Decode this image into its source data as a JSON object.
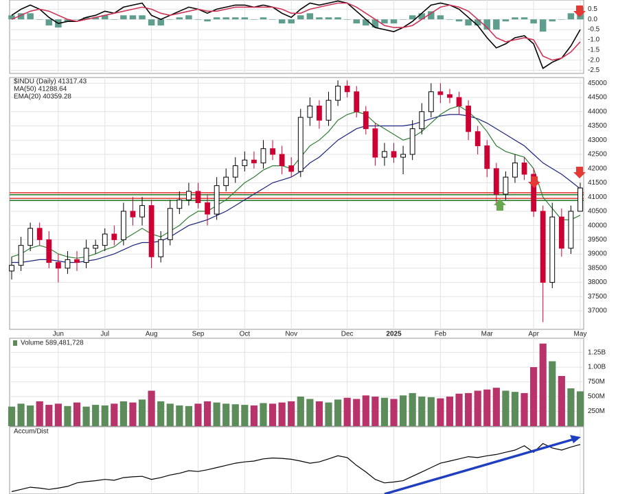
{
  "chart_data": [
    {
      "type": "line",
      "histogram": true,
      "histogram_color": "#5f9e8f",
      "ylim": [
        -2.65,
        0.95
      ],
      "yticks": [
        0.5,
        {
          "value": 0,
          "label": "0.0"
        },
        -0.5,
        {
          "value": -1,
          "label": "-1.0"
        },
        -1.5,
        {
          "value": -2,
          "label": "-2.0"
        },
        -2.5
      ],
      "series": [
        {
          "color": "#000000",
          "values": [
            0.2,
            0.5,
            0.7,
            0.5,
            0.1,
            -0.2,
            -0.1,
            -0.1,
            0.1,
            0.2,
            0.4,
            0.3,
            0.6,
            0.7,
            0.8,
            0.2,
            0.0,
            0.2,
            0.4,
            0.6,
            0.5,
            0.3,
            0.5,
            0.6,
            0.7,
            0.7,
            0.6,
            0.7,
            0.6,
            0.3,
            0.1,
            0.5,
            0.8,
            0.7,
            0.8,
            0.9,
            0.8,
            0.4,
            0.0,
            -0.4,
            -0.5,
            -0.6,
            -0.4,
            -0.1,
            0.3,
            0.7,
            0.8,
            0.7,
            0.5,
            0.1,
            -0.3,
            -0.9,
            -1.4,
            -1.2,
            -0.9,
            -0.8,
            -1.2,
            -2.4,
            -2.1,
            -1.9,
            -1.3,
            -0.5
          ]
        },
        {
          "color": "#cc3355",
          "values": [
            0.0,
            0.2,
            0.4,
            0.5,
            0.4,
            0.2,
            0.0,
            -0.1,
            0.0,
            0.1,
            0.2,
            0.3,
            0.4,
            0.5,
            0.6,
            0.5,
            0.3,
            0.2,
            0.3,
            0.4,
            0.5,
            0.4,
            0.4,
            0.5,
            0.6,
            0.6,
            0.6,
            0.6,
            0.6,
            0.5,
            0.3,
            0.3,
            0.5,
            0.6,
            0.7,
            0.8,
            0.8,
            0.6,
            0.3,
            0.0,
            -0.3,
            -0.4,
            -0.4,
            -0.3,
            0.0,
            0.3,
            0.6,
            0.7,
            0.6,
            0.4,
            0.0,
            -0.4,
            -0.9,
            -1.1,
            -1.0,
            -0.9,
            -1.0,
            -1.8,
            -2.0,
            -1.9,
            -1.6,
            -1.1
          ]
        }
      ]
    },
    {
      "type": "candlestick",
      "title": "$INDU (Daily) 41317.43",
      "up_color": "#000000",
      "down_color": "#cc0033",
      "categories": [
        null,
        null,
        null,
        null,
        null,
        null,
        null,
        null,
        null,
        null,
        null,
        null,
        null,
        null,
        null,
        null,
        null,
        null,
        null,
        null,
        null,
        null,
        null,
        null,
        null,
        null,
        null,
        null,
        null,
        null,
        null,
        null,
        null,
        null,
        null,
        null,
        null,
        null,
        null,
        null,
        null,
        null,
        null,
        null,
        null,
        null,
        null,
        null,
        null,
        null,
        null,
        null,
        null,
        null,
        null,
        null,
        null,
        null,
        null,
        null,
        null,
        null
      ],
      "open": [
        38400,
        38600,
        39300,
        39900,
        39500,
        38700,
        38500,
        38800,
        38700,
        39200,
        39300,
        39700,
        39500,
        40500,
        40300,
        40700,
        38900,
        39500,
        40600,
        40900,
        41200,
        40800,
        40400,
        41400,
        41700,
        42100,
        42300,
        42200,
        42700,
        42500,
        42100,
        41900,
        43800,
        44200,
        43700,
        44400,
        44900,
        44700,
        44000,
        43400,
        42400,
        42600,
        42400,
        42500,
        43400,
        44000,
        44700,
        44600,
        44500,
        44200,
        43300,
        42800,
        42000,
        41100,
        41700,
        42200,
        41800,
        40500,
        38000,
        40300,
        39200,
        40500
      ],
      "high": [
        38900,
        39600,
        40100,
        40100,
        39800,
        39000,
        39100,
        39100,
        39500,
        39500,
        39900,
        40000,
        40800,
        41000,
        41000,
        40900,
        39800,
        40900,
        41200,
        41500,
        41500,
        41100,
        41700,
        42000,
        42400,
        42600,
        42600,
        43000,
        43000,
        42800,
        42400,
        44100,
        44500,
        44400,
        44700,
        45100,
        45100,
        44900,
        44200,
        43600,
        42900,
        42900,
        42800,
        43700,
        44300,
        45000,
        45000,
        44800,
        44700,
        44400,
        43500,
        43000,
        42200,
        41900,
        42500,
        42400,
        42000,
        40700,
        40800,
        40600,
        40700,
        41500
      ],
      "low": [
        38100,
        38400,
        39100,
        39300,
        38500,
        38000,
        38300,
        38400,
        38500,
        39000,
        39100,
        39300,
        39300,
        40000,
        40000,
        38500,
        38700,
        39300,
        40400,
        40700,
        40600,
        40000,
        40200,
        41200,
        41500,
        41900,
        42000,
        42000,
        42300,
        41800,
        41700,
        41700,
        43500,
        43400,
        43500,
        44200,
        44500,
        43800,
        43200,
        42100,
        42100,
        42200,
        41800,
        42300,
        43200,
        43800,
        44300,
        44300,
        43900,
        43000,
        42500,
        41700,
        40700,
        40900,
        41500,
        41600,
        40300,
        36600,
        37800,
        38900,
        39000,
        40500
      ],
      "close": [
        38600,
        39300,
        39900,
        39500,
        38700,
        38500,
        38800,
        38700,
        39200,
        39300,
        39700,
        39500,
        40500,
        40300,
        40700,
        38900,
        39500,
        40600,
        40900,
        41200,
        40800,
        40400,
        41400,
        41700,
        42100,
        42300,
        42200,
        42700,
        42500,
        42100,
        41900,
        43800,
        44200,
        43700,
        44400,
        44900,
        44700,
        44000,
        43400,
        42400,
        42600,
        42400,
        42500,
        43400,
        44000,
        44700,
        44600,
        44500,
        44200,
        43300,
        42800,
        42000,
        41100,
        41700,
        42200,
        41800,
        40500,
        38000,
        40300,
        39200,
        40500,
        41317.43
      ],
      "series": [
        {
          "name": "MA(50) 41288.64",
          "color": "#1a237e",
          "values": [
            38700,
            38700,
            38750,
            38800,
            38800,
            38750,
            38700,
            38700,
            38750,
            38800,
            38900,
            39000,
            39150,
            39300,
            39400,
            39400,
            39450,
            39600,
            39800,
            40000,
            40100,
            40200,
            40350,
            40500,
            40700,
            40900,
            41100,
            41300,
            41500,
            41600,
            41700,
            41900,
            42200,
            42400,
            42700,
            43000,
            43200,
            43400,
            43500,
            43500,
            43500,
            43500,
            43500,
            43550,
            43650,
            43750,
            43850,
            43900,
            43900,
            43850,
            43750,
            43600,
            43400,
            43200,
            43000,
            42800,
            42500,
            42200,
            42000,
            41800,
            41550,
            41288.64
          ]
        },
        {
          "name": "EMA(20) 40359.28",
          "color": "#2e7d32",
          "values": [
            38900,
            39000,
            39200,
            39300,
            39200,
            39000,
            38900,
            38850,
            38900,
            39000,
            39150,
            39250,
            39500,
            39700,
            39900,
            39700,
            39600,
            39800,
            40000,
            40300,
            40500,
            40500,
            40700,
            40900,
            41200,
            41500,
            41700,
            41950,
            42100,
            42100,
            42000,
            42400,
            42800,
            43000,
            43300,
            43700,
            43900,
            44000,
            43900,
            43600,
            43400,
            43200,
            43000,
            43100,
            43300,
            43600,
            43900,
            44100,
            44200,
            44000,
            43700,
            43300,
            42800,
            42600,
            42500,
            42400,
            42000,
            41000,
            40600,
            40200,
            40200,
            40359.28
          ]
        }
      ],
      "levels": [
        {
          "value": 41150,
          "color": "#e53935"
        },
        {
          "value": 41080,
          "color": "#2e7d32"
        },
        {
          "value": 40950,
          "color": "#e53935"
        },
        {
          "value": 40880,
          "color": "#2e7d32"
        }
      ],
      "ylim": [
        36350,
        45200
      ],
      "yticks": [
        37000,
        37500,
        38000,
        38500,
        39000,
        39500,
        40000,
        40500,
        41000,
        41500,
        42000,
        42500,
        43000,
        43500,
        44000,
        44500,
        45000
      ],
      "xticks": [
        {
          "value": 5,
          "label": "Jun"
        },
        {
          "value": 10,
          "label": "Jul"
        },
        {
          "value": 15,
          "label": "Aug"
        },
        {
          "value": 20,
          "label": "Sep"
        },
        {
          "value": 25,
          "label": "Oct"
        },
        {
          "value": 30,
          "label": "Nov"
        },
        {
          "value": 36,
          "label": "Dec"
        },
        {
          "value": 41,
          "label": "2025"
        },
        {
          "value": 46,
          "label": "Feb"
        },
        {
          "value": 51,
          "label": "Mar"
        },
        {
          "value": 56,
          "label": "Apr"
        },
        {
          "value": 61,
          "label": "May"
        }
      ]
    },
    {
      "type": "bar",
      "title": "Volume 589,481,728",
      "up_color": "#5b8c5a",
      "down_color": "#b8336a",
      "values": [
        330000000,
        380000000,
        350000000,
        420000000,
        360000000,
        380000000,
        340000000,
        400000000,
        330000000,
        360000000,
        350000000,
        380000000,
        420000000,
        400000000,
        450000000,
        600000000,
        420000000,
        380000000,
        350000000,
        340000000,
        380000000,
        420000000,
        400000000,
        380000000,
        370000000,
        360000000,
        350000000,
        390000000,
        380000000,
        400000000,
        420000000,
        500000000,
        460000000,
        420000000,
        400000000,
        450000000,
        480000000,
        460000000,
        520000000,
        500000000,
        480000000,
        460000000,
        520000000,
        560000000,
        500000000,
        490000000,
        470000000,
        500000000,
        550000000,
        560000000,
        600000000,
        620000000,
        650000000,
        600000000,
        580000000,
        560000000,
        1000000000,
        1400000000,
        1100000000,
        850000000,
        640000000,
        589481728
      ],
      "ylim": [
        0,
        1490000000
      ],
      "yticks": [
        {
          "value": 250000000,
          "label": "250M"
        },
        {
          "value": 500000000,
          "label": "500M"
        },
        {
          "value": 750000000,
          "label": "750M"
        },
        {
          "value": 1000000000,
          "label": "1.00B"
        },
        {
          "value": 1250000000,
          "label": "1.25B"
        }
      ]
    },
    {
      "type": "line",
      "title": "Accum/Dist",
      "series": [
        {
          "color": "#000000",
          "values": [
            -20,
            -15,
            -10,
            -12,
            -15,
            -12,
            -8,
            0,
            3,
            5,
            8,
            6,
            12,
            14,
            15,
            8,
            12,
            18,
            22,
            28,
            26,
            30,
            35,
            40,
            45,
            48,
            50,
            55,
            57,
            56,
            54,
            50,
            45,
            48,
            55,
            62,
            58,
            40,
            25,
            8,
            0,
            2,
            5,
            15,
            25,
            35,
            45,
            50,
            55,
            60,
            58,
            62,
            65,
            70,
            75,
            85,
            70,
            90,
            80,
            75,
            82,
            88
          ]
        }
      ]
    }
  ]
}
